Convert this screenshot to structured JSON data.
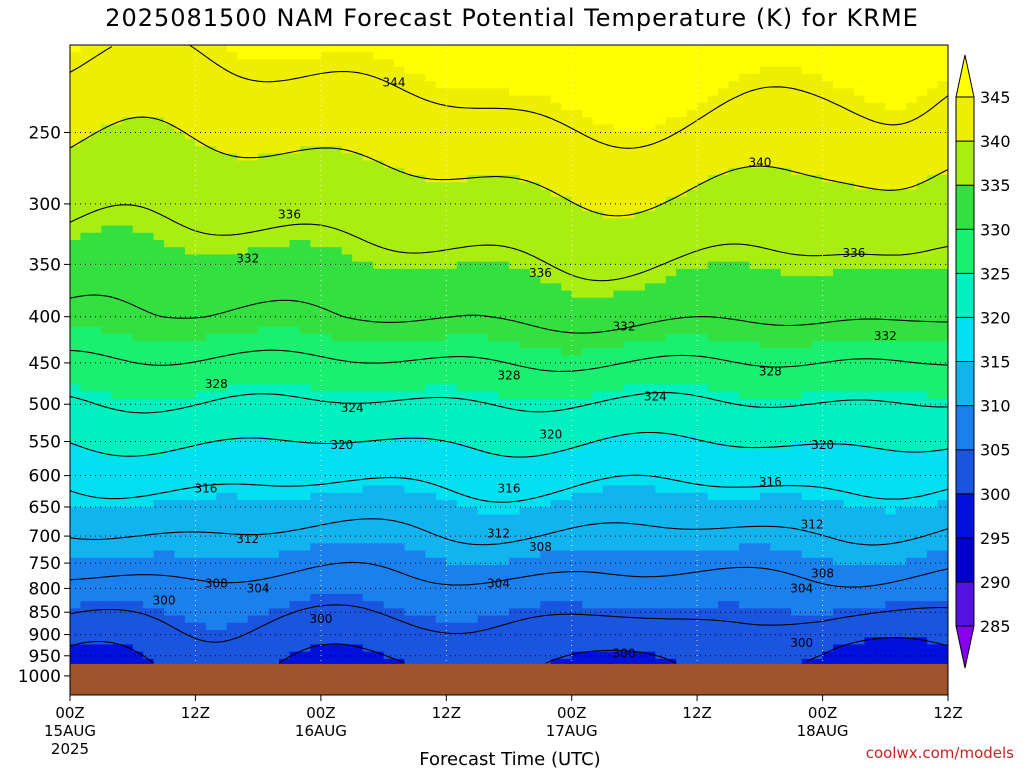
{
  "page": {
    "title": "2025081500 NAM Forecast Potential Temperature (K) for KRME",
    "credit": "coolwx.com/models"
  },
  "chart_data": {
    "type": "heatmap",
    "title": "2025081500 NAM Forecast Potential Temperature (K) for KRME",
    "xlabel": "Forecast Time (UTC)",
    "ylabel": "",
    "x_ticks": [
      {
        "hour": 0,
        "label": "00Z",
        "date": "15AUG",
        "year": "2025"
      },
      {
        "hour": 12,
        "label": "12Z",
        "date": "",
        "year": ""
      },
      {
        "hour": 24,
        "label": "00Z",
        "date": "16AUG",
        "year": ""
      },
      {
        "hour": 36,
        "label": "12Z",
        "date": "",
        "year": ""
      },
      {
        "hour": 48,
        "label": "00Z",
        "date": "17AUG",
        "year": ""
      },
      {
        "hour": 60,
        "label": "12Z",
        "date": "",
        "year": ""
      },
      {
        "hour": 72,
        "label": "00Z",
        "date": "18AUG",
        "year": ""
      },
      {
        "hour": 84,
        "label": "12Z",
        "date": "",
        "year": ""
      }
    ],
    "xlim": [
      0,
      84
    ],
    "y_ticks": [
      250,
      300,
      350,
      400,
      450,
      500,
      550,
      600,
      650,
      700,
      750,
      800,
      850,
      900,
      950,
      1000
    ],
    "ylim": [
      200,
      1050
    ],
    "y_scale": "log-pressure",
    "surface_pressure_hpa": 970,
    "colorbar": {
      "levels": [
        285,
        290,
        295,
        300,
        305,
        310,
        315,
        320,
        325,
        330,
        335,
        340,
        345
      ],
      "colors": [
        "#8800ee",
        "#5511dd",
        "#0000cc",
        "#0011dd",
        "#1a55e0",
        "#1a80ee",
        "#12b4f0",
        "#00e0f0",
        "#00f0c0",
        "#1af070",
        "#33e040",
        "#aaee11",
        "#eeee00",
        "#ffff00"
      ]
    },
    "contour_levels": [
      300,
      304,
      308,
      312,
      316,
      320,
      324,
      328,
      332,
      336,
      340,
      344
    ],
    "contour_labels": [
      {
        "value": 344,
        "hour": 31,
        "p": 220
      },
      {
        "value": 340,
        "hour": 66,
        "p": 270
      },
      {
        "value": 336,
        "hour": 21,
        "p": 308
      },
      {
        "value": 336,
        "hour": 75,
        "p": 340
      },
      {
        "value": 336,
        "hour": 45,
        "p": 358
      },
      {
        "value": 332,
        "hour": 17,
        "p": 345
      },
      {
        "value": 332,
        "hour": 53,
        "p": 410
      },
      {
        "value": 332,
        "hour": 78,
        "p": 420
      },
      {
        "value": 328,
        "hour": 14,
        "p": 475
      },
      {
        "value": 328,
        "hour": 42,
        "p": 465
      },
      {
        "value": 328,
        "hour": 67,
        "p": 460
      },
      {
        "value": 324,
        "hour": 27,
        "p": 505
      },
      {
        "value": 324,
        "hour": 56,
        "p": 490
      },
      {
        "value": 320,
        "hour": 26,
        "p": 555
      },
      {
        "value": 320,
        "hour": 46,
        "p": 540
      },
      {
        "value": 320,
        "hour": 72,
        "p": 555
      },
      {
        "value": 316,
        "hour": 13,
        "p": 620
      },
      {
        "value": 316,
        "hour": 42,
        "p": 620
      },
      {
        "value": 316,
        "hour": 67,
        "p": 610
      },
      {
        "value": 312,
        "hour": 17,
        "p": 705
      },
      {
        "value": 312,
        "hour": 41,
        "p": 695
      },
      {
        "value": 312,
        "hour": 71,
        "p": 680
      },
      {
        "value": 308,
        "hour": 14,
        "p": 790
      },
      {
        "value": 308,
        "hour": 45,
        "p": 720
      },
      {
        "value": 308,
        "hour": 72,
        "p": 770
      },
      {
        "value": 304,
        "hour": 18,
        "p": 800
      },
      {
        "value": 304,
        "hour": 41,
        "p": 790
      },
      {
        "value": 304,
        "hour": 70,
        "p": 800
      },
      {
        "value": 300,
        "hour": 9,
        "p": 825
      },
      {
        "value": 300,
        "hour": 24,
        "p": 865
      },
      {
        "value": 300,
        "hour": 53,
        "p": 945
      },
      {
        "value": 300,
        "hour": 70,
        "p": 920
      }
    ]
  }
}
